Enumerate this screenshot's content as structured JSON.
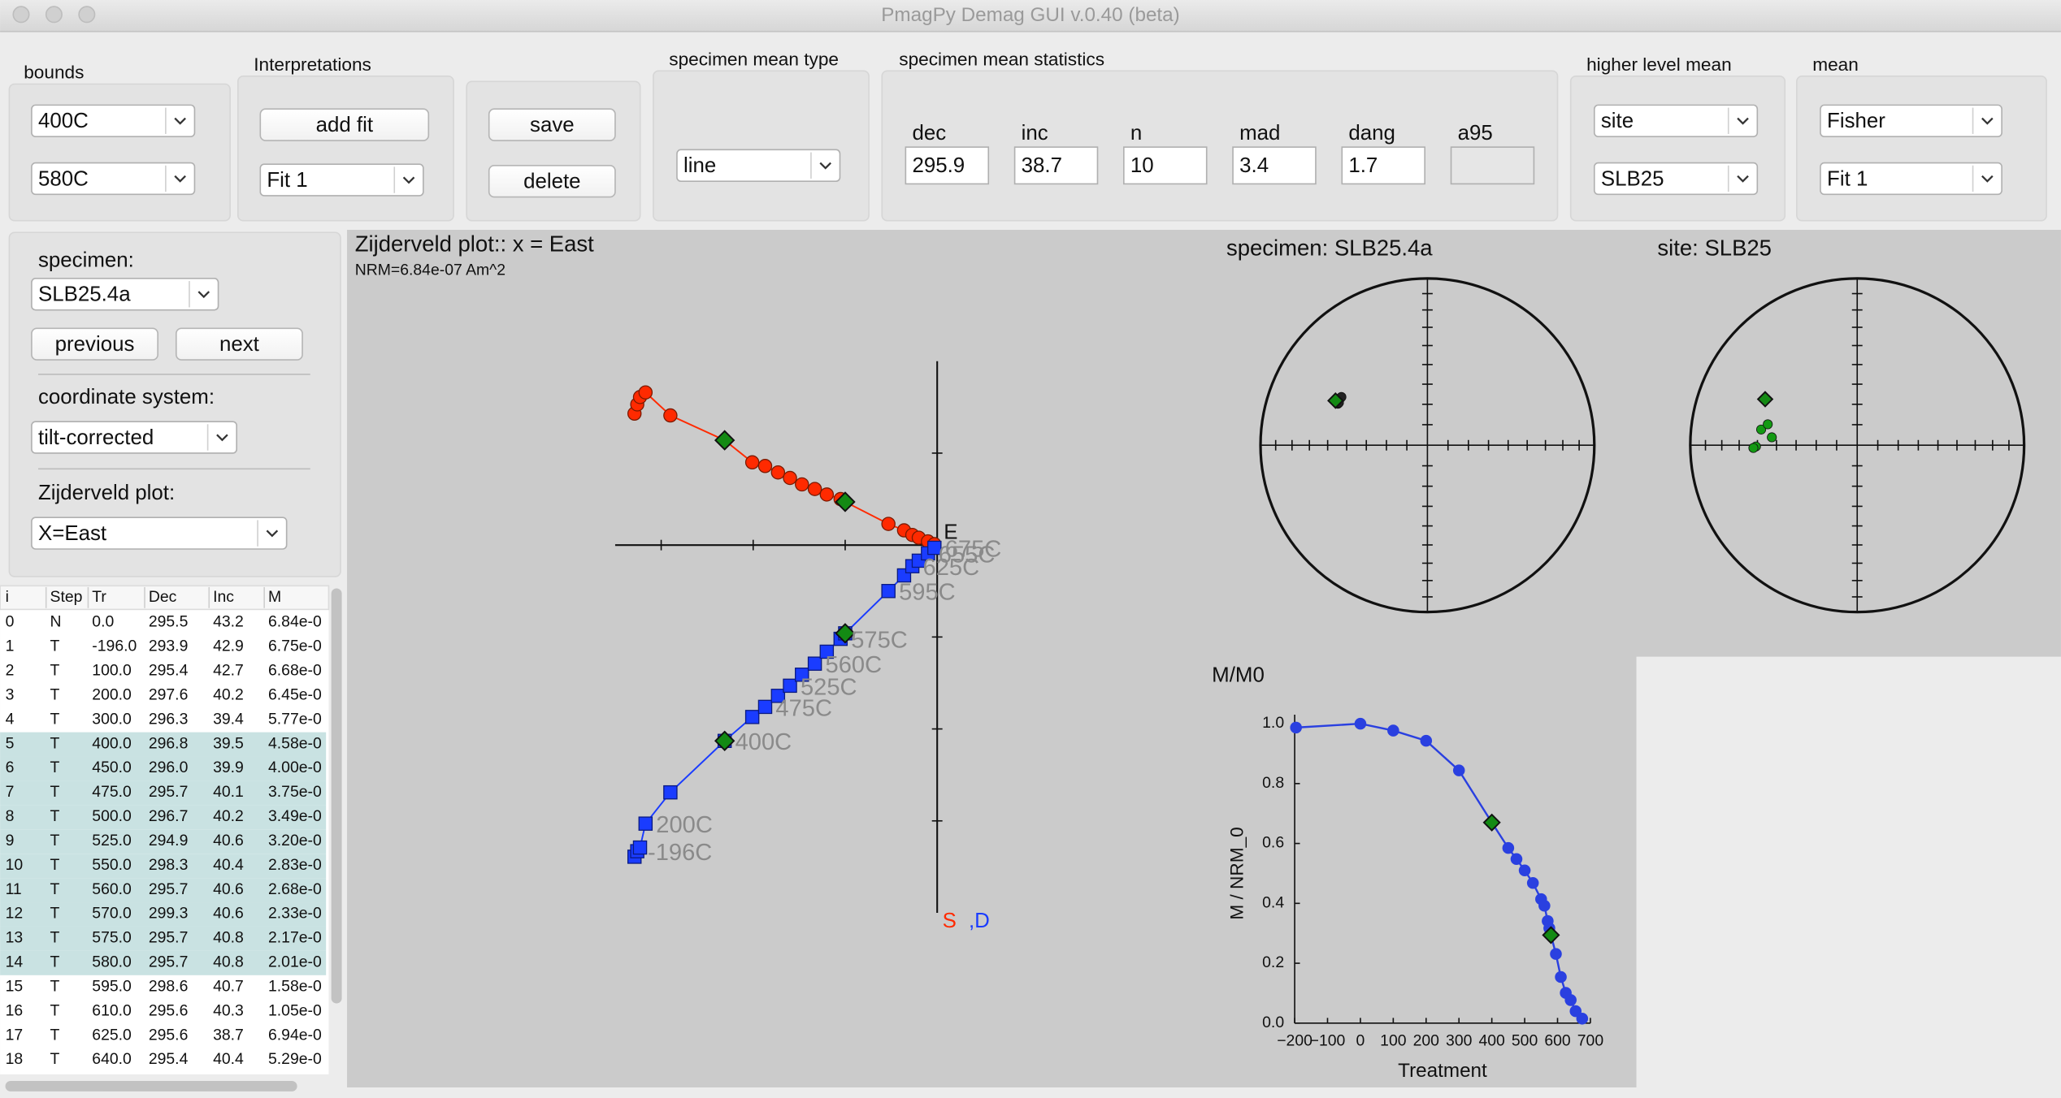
{
  "window": {
    "title": "PmagPy Demag GUI v.0.40 (beta)"
  },
  "toolbar": {
    "bounds": {
      "label": "bounds",
      "lower": "400C",
      "upper": "580C"
    },
    "interpretations": {
      "label": "Interpretations",
      "add_fit": "add fit",
      "fit": "Fit 1"
    },
    "actions": {
      "save": "save",
      "delete": "delete"
    },
    "specimen_mean_type": {
      "label": "specimen mean type",
      "value": "line"
    },
    "specimen_mean_statistics": {
      "label": "specimen mean statistics",
      "fields": [
        {
          "label": "dec",
          "value": "295.9"
        },
        {
          "label": "inc",
          "value": "38.7"
        },
        {
          "label": "n",
          "value": "10"
        },
        {
          "label": "mad",
          "value": "3.4"
        },
        {
          "label": "dang",
          "value": "1.7"
        },
        {
          "label": "a95"
        }
      ]
    },
    "higher_level_mean": {
      "label": "higher level mean",
      "level": "site",
      "name": "SLB25"
    },
    "mean": {
      "label": "mean",
      "type": "Fisher",
      "fit": "Fit 1"
    }
  },
  "sidebar": {
    "specimen_label": "specimen:",
    "specimen": "SLB25.4a",
    "previous": "previous",
    "next": "next",
    "coordinate_label": "coordinate system:",
    "coordinate": "tilt-corrected",
    "zijderveld_label": "Zijderveld plot:",
    "zijderveld": "X=East"
  },
  "table": {
    "columns": [
      "i",
      "Step",
      "Tr",
      "Dec",
      "Inc",
      "M"
    ],
    "rows": [
      [
        "0",
        "N",
        "0.0",
        "295.5",
        "43.2",
        "6.84e-0"
      ],
      [
        "1",
        "T",
        "-196.0",
        "293.9",
        "42.9",
        "6.75e-0"
      ],
      [
        "2",
        "T",
        "100.0",
        "295.4",
        "42.7",
        "6.68e-0"
      ],
      [
        "3",
        "T",
        "200.0",
        "297.6",
        "40.2",
        "6.45e-0"
      ],
      [
        "4",
        "T",
        "300.0",
        "296.3",
        "39.4",
        "5.77e-0"
      ],
      [
        "5",
        "T",
        "400.0",
        "296.8",
        "39.5",
        "4.58e-0"
      ],
      [
        "6",
        "T",
        "450.0",
        "296.0",
        "39.9",
        "4.00e-0"
      ],
      [
        "7",
        "T",
        "475.0",
        "295.7",
        "40.1",
        "3.75e-0"
      ],
      [
        "8",
        "T",
        "500.0",
        "296.7",
        "40.2",
        "3.49e-0"
      ],
      [
        "9",
        "T",
        "525.0",
        "294.9",
        "40.6",
        "3.20e-0"
      ],
      [
        "10",
        "T",
        "550.0",
        "298.3",
        "40.4",
        "2.83e-0"
      ],
      [
        "11",
        "T",
        "560.0",
        "295.7",
        "40.6",
        "2.68e-0"
      ],
      [
        "12",
        "T",
        "570.0",
        "299.3",
        "40.6",
        "2.33e-0"
      ],
      [
        "13",
        "T",
        "575.0",
        "295.7",
        "40.8",
        "2.17e-0"
      ],
      [
        "14",
        "T",
        "580.0",
        "295.7",
        "40.8",
        "2.01e-0"
      ],
      [
        "15",
        "T",
        "595.0",
        "298.6",
        "40.7",
        "1.58e-0"
      ],
      [
        "16",
        "T",
        "610.0",
        "295.6",
        "40.3",
        "1.05e-0"
      ],
      [
        "17",
        "T",
        "625.0",
        "295.6",
        "38.7",
        "6.94e-0"
      ],
      [
        "18",
        "T",
        "640.0",
        "295.4",
        "40.4",
        "5.29e-0"
      ]
    ],
    "highlighted_rows": [
      5,
      6,
      7,
      8,
      9,
      10,
      11,
      12,
      13,
      14
    ],
    "highlight_color": "#c9e2e2"
  },
  "chart_data": [
    {
      "type": "zijderveld",
      "title": "Zijderveld plot:: x = East",
      "subtitle": "NRM=6.84e-07 Am^2",
      "x_label": "E",
      "x": [
        -3.29,
        -3.26,
        -3.23,
        -3.17,
        -2.9,
        -2.31,
        -2.01,
        -1.87,
        -1.73,
        -1.6,
        -1.47,
        -1.33,
        -1.2,
        -1.05,
        -1.0,
        -0.53,
        -0.36,
        -0.27,
        -0.2,
        -0.1,
        -0.03
      ],
      "series": [
        {
          "name": "S",
          "color": "#ff2a00",
          "marker": "circle",
          "values": [
            1.43,
            1.53,
            1.61,
            1.66,
            1.41,
            1.14,
            0.9,
            0.86,
            0.79,
            0.73,
            0.66,
            0.61,
            0.55,
            0.5,
            0.47,
            0.23,
            0.16,
            0.11,
            0.08,
            0.04,
            0.01
          ]
        },
        {
          "name": ",D",
          "color": "#1a3cff",
          "marker": "square",
          "values": [
            -3.39,
            -3.33,
            -3.29,
            -3.03,
            -2.69,
            -2.13,
            -1.87,
            -1.76,
            -1.64,
            -1.53,
            -1.41,
            -1.29,
            -1.16,
            -1.02,
            -0.96,
            -0.5,
            -0.33,
            -0.23,
            -0.17,
            -0.09,
            -0.03
          ]
        }
      ],
      "labels": [
        null,
        "-196C",
        null,
        "200C",
        null,
        "400C",
        null,
        "475C",
        null,
        "525C",
        null,
        "560C",
        null,
        "575C",
        null,
        "595C",
        null,
        "625C",
        null,
        "655C",
        "675C"
      ],
      "xlim": [
        -3.5,
        0
      ],
      "ylim": [
        -4,
        2
      ],
      "xticks": [
        -3,
        -2,
        -1
      ],
      "yticks": [
        1,
        -1,
        -2,
        -3
      ],
      "fit": {
        "indices": [
          5,
          14
        ],
        "color": "#138a13"
      }
    },
    {
      "type": "equal_area",
      "title": "specimen: SLB25.4a",
      "color": "#222222",
      "directions": {
        "dec": [
          296.8,
          296.0,
          295.7,
          296.7,
          294.9,
          298.3,
          295.7,
          299.3,
          295.7,
          295.7
        ],
        "inc": [
          39.5,
          39.9,
          40.1,
          40.2,
          40.6,
          40.4,
          40.6,
          40.6,
          40.8,
          40.8
        ]
      },
      "mean": {
        "dec": 295.9,
        "inc": 38.7,
        "color": "#138a13"
      }
    },
    {
      "type": "equal_area",
      "title": "site: SLB25",
      "color": "#139a13",
      "directions": {
        "dec": [
          279.3,
          269.3,
          275.3,
          268.5,
          283.2
        ],
        "inc": [
          41.3,
          39.2,
          47.4,
          37.8,
          44.2
        ]
      },
      "mean": {
        "dec": 296.6,
        "inc": 38.3,
        "color": "#138a13"
      }
    },
    {
      "type": "line",
      "title": "M/M0",
      "x_label": "Treatment",
      "y_label": "M / NRM_0",
      "color": "#2a40e0",
      "x": [
        -196,
        0,
        100,
        200,
        300,
        400,
        450,
        475,
        500,
        525,
        550,
        560,
        570,
        575,
        580,
        595,
        610,
        625,
        640,
        655,
        675
      ],
      "values": [
        0.987,
        1.0,
        0.977,
        0.943,
        0.844,
        0.67,
        0.585,
        0.548,
        0.51,
        0.468,
        0.414,
        0.392,
        0.341,
        0.317,
        0.294,
        0.231,
        0.154,
        0.101,
        0.077,
        0.04,
        0.015
      ],
      "xlim": [
        -200,
        700
      ],
      "ylim": [
        0,
        1.03
      ],
      "xticks": [
        {
          "value": -200,
          "label": "−200"
        },
        {
          "value": -100,
          "label": "−100"
        },
        0,
        100,
        200,
        300,
        400,
        500,
        600,
        700
      ],
      "yticks": [
        {
          "value": 0,
          "label": "0.0"
        },
        0.2,
        0.4,
        0.6,
        0.8,
        {
          "value": 1,
          "label": "1.0"
        }
      ],
      "fit": {
        "indices": [
          5,
          14
        ],
        "color": "#138a13"
      }
    }
  ]
}
